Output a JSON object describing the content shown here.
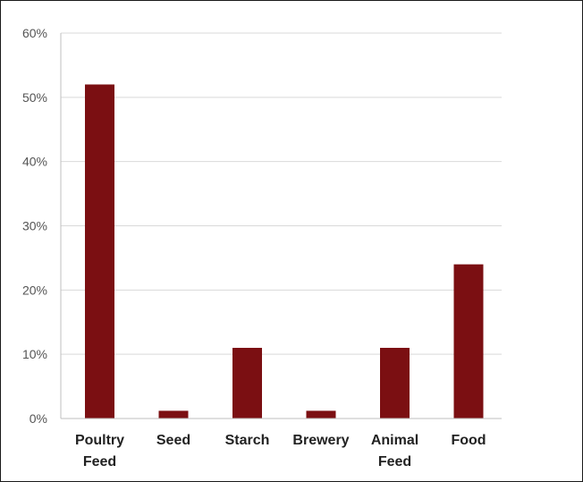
{
  "chart_data": {
    "type": "bar",
    "categories": [
      "Poultry Feed",
      "Seed",
      "Starch",
      "Brewery",
      "Animal Feed",
      "Food"
    ],
    "category_lines": [
      [
        "Poultry",
        "Feed"
      ],
      [
        "Seed"
      ],
      [
        "Starch"
      ],
      [
        "Brewery"
      ],
      [
        "Animal",
        "Feed"
      ],
      [
        "Food"
      ]
    ],
    "values": [
      52,
      1.2,
      11,
      1.2,
      11,
      24
    ],
    "ylim": [
      0,
      60
    ],
    "yticks": [
      0,
      10,
      20,
      30,
      40,
      50,
      60
    ],
    "ytick_labels": [
      "0%",
      "10%",
      "20%",
      "30%",
      "40%",
      "50%",
      "60%"
    ],
    "title": "",
    "xlabel": "",
    "ylabel": "",
    "grid": true,
    "legend": "none",
    "bar_color": "#7b0f12",
    "grid_color": "#d9d9d9",
    "axis_color": "#bfbfbf"
  }
}
